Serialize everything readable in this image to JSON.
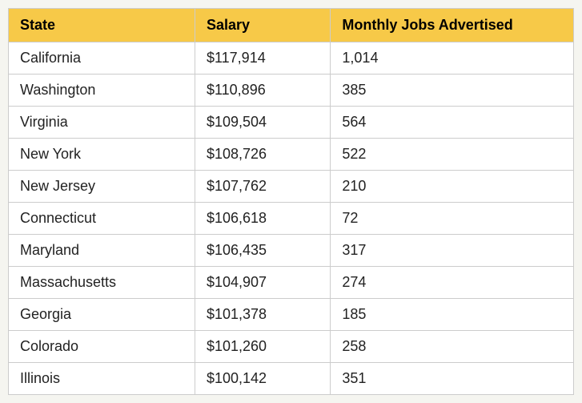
{
  "table": {
    "type": "table",
    "header_background": "#f7c948",
    "border_color": "#cccccc",
    "row_background": "#ffffff",
    "text_color": "#222222",
    "header_text_color": "#000000",
    "font_size": 18,
    "header_font_weight": "bold",
    "columns": [
      {
        "key": "state",
        "label": "State",
        "width": "33%"
      },
      {
        "key": "salary",
        "label": "Salary",
        "width": "24%"
      },
      {
        "key": "jobs",
        "label": "Monthly Jobs Advertised",
        "width": "43%"
      }
    ],
    "rows": [
      {
        "state": "California",
        "salary": "$117,914",
        "jobs": "1,014"
      },
      {
        "state": "Washington",
        "salary": "$110,896",
        "jobs": "385"
      },
      {
        "state": "Virginia",
        "salary": "$109,504",
        "jobs": "564"
      },
      {
        "state": "New York",
        "salary": "$108,726",
        "jobs": "522"
      },
      {
        "state": "New Jersey",
        "salary": "$107,762",
        "jobs": "210"
      },
      {
        "state": "Connecticut",
        "salary": "$106,618",
        "jobs": "72"
      },
      {
        "state": "Maryland",
        "salary": "$106,435",
        "jobs": "317"
      },
      {
        "state": "Massachusetts",
        "salary": "$104,907",
        "jobs": "274"
      },
      {
        "state": "Georgia",
        "salary": "$101,378",
        "jobs": "185"
      },
      {
        "state": "Colorado",
        "salary": "$101,260",
        "jobs": "258"
      },
      {
        "state": "Illinois",
        "salary": "$100,142",
        "jobs": "351"
      }
    ]
  }
}
